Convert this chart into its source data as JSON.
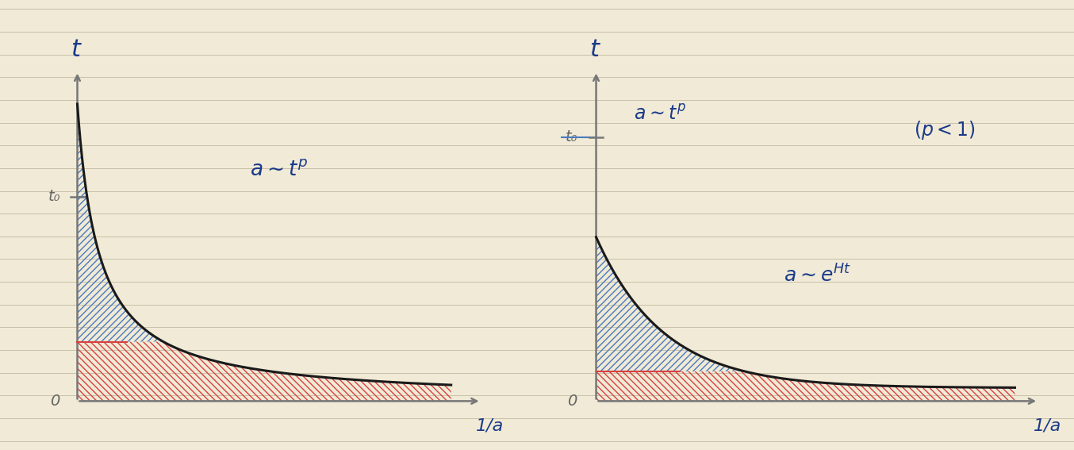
{
  "bg_color": "#f0ead6",
  "line_color": "#1a1a1a",
  "blue_hatch_color": "#4a7abf",
  "red_hatch_color": "#d94040",
  "axis_color": "#777777",
  "text_blue": "#1a3a8a",
  "text_gray": "#666666",
  "ruled_line_color": "#c8c0a8",
  "left_t0_label": "t₀",
  "left_origin": "0",
  "left_title": "t",
  "left_xlabel": "1/a",
  "right_t0_label": "t₀",
  "right_origin": "0",
  "right_title": "t",
  "right_xlabel": "1/a",
  "right_formula1": "a ~ t^p",
  "right_formula2": "a ~ e^{Ht}",
  "right_pineq": "(p < 1)"
}
